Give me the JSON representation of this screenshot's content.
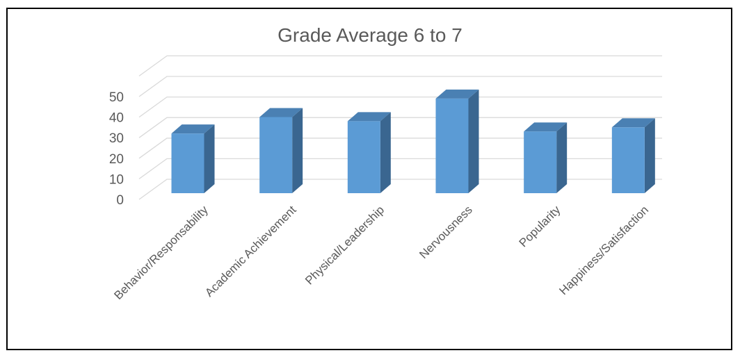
{
  "chart_data": {
    "type": "bar",
    "title": "Grade Average 6 to 7",
    "xlabel": "",
    "ylabel": "",
    "categories": [
      "Behavior/Responsability",
      "Academic Achievement",
      "Physical/Leadership",
      "Nervousness",
      "Popularity",
      "Happiness/Satisfaction"
    ],
    "values": [
      29,
      37,
      35,
      46,
      30,
      32
    ],
    "ylim": [
      0,
      50
    ],
    "yticks": [
      "0",
      "10",
      "20",
      "30",
      "40",
      "50"
    ],
    "grid": true,
    "legend": "none",
    "style": "3d-column",
    "colors": {
      "bar_front": "#5B9BD5",
      "bar_side": "#3A6690",
      "bar_top": "#4A80B3",
      "grid": "#D9D9D9",
      "text": "#595959"
    }
  }
}
